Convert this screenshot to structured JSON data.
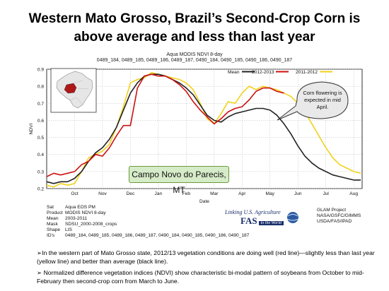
{
  "header": {
    "title_line1": "Western Mato Grosso, Brazil’s Second-Crop Corn is",
    "title_line2": "above average and less than last year"
  },
  "chart_header": {
    "line1": "Aqua MODIS NDVI 8-day",
    "line2": "0489_184, 0489_185, 0489_186, 0489_187, 0490_184, 0490_185, 0490_186, 0490_187"
  },
  "callout": "Campo Novo do Parecis, MT",
  "bubble": "Corn flowering is expected in mid April.",
  "meta": [
    {
      "k": "Sat",
      "v": "Aqua EOS PM"
    },
    {
      "k": "Product",
      "v": "MODIS NDVI 8-day"
    },
    {
      "k": "Mean",
      "v": "2003-2011"
    },
    {
      "k": "Mask",
      "v": "SDSU_2000-2008_crops"
    },
    {
      "k": "Shape",
      "v": "LIS"
    },
    {
      "k": "ID's",
      "v": "0489_184, 0489_185, 0489_186, 0489_187, 0490_184, 0490_185, 0490_186, 0490_187"
    }
  ],
  "logo": {
    "text1": "Linking U.S. Agriculture",
    "text2": "FAS",
    "text3": "to the World"
  },
  "glam": [
    "GLAM Project",
    "NASA/GSFC/GIMMS",
    "USDA/FAS/IPAD"
  ],
  "bullets": [
    "In the western part of Mato Grosso state, 2012/13 vegetation conditions are doing well (red line)—slightly less than last year (yellow line) and better than average (black line).",
    "Normalized difference vegetation indices (NDVI) show characteristic bi-modal pattern of soybeans from October to mid-February then second-crop corn from March to June."
  ],
  "colors": {
    "mean": "#222222",
    "y2012_2013": "#cc1111",
    "y2011_2012": "#f2d21b",
    "callout_fill": "#d6ecc8",
    "callout_border": "#6a9a3a",
    "bubble_fill": "#e9e9e9"
  },
  "chart_data": {
    "type": "line",
    "xlabel": "Date",
    "ylabel": "NDVI",
    "ylim": [
      0.2,
      0.9
    ],
    "yticks": [
      0.2,
      0.3,
      0.4,
      0.5,
      0.6,
      0.7,
      0.8,
      0.9
    ],
    "xlim": [
      0,
      11.3
    ],
    "xticks": [
      {
        "pos": 1,
        "label": "Oct"
      },
      {
        "pos": 2,
        "label": "Nov"
      },
      {
        "pos": 3,
        "label": "Dec"
      },
      {
        "pos": 4,
        "label": "Jan"
      },
      {
        "pos": 5,
        "label": "Feb"
      },
      {
        "pos": 6,
        "label": "Mar"
      },
      {
        "pos": 7,
        "label": "Apr"
      },
      {
        "pos": 8,
        "label": "May"
      },
      {
        "pos": 9,
        "label": "Jun"
      },
      {
        "pos": 10,
        "label": "Jul"
      },
      {
        "pos": 11,
        "label": "Aug"
      }
    ],
    "legend_position": "top-right",
    "series": [
      {
        "name": "Mean",
        "x": [
          0,
          0.25,
          0.5,
          0.75,
          1,
          1.25,
          1.5,
          1.75,
          2,
          2.25,
          2.5,
          2.75,
          3,
          3.25,
          3.5,
          3.75,
          4,
          4.25,
          4.5,
          4.75,
          5,
          5.25,
          5.5,
          5.75,
          6,
          6.25,
          6.5,
          6.75,
          7,
          7.25,
          7.5,
          7.75,
          8,
          8.25,
          8.5,
          8.75,
          9,
          9.25,
          9.5,
          9.75,
          10,
          10.25,
          10.5,
          10.75,
          11,
          11.25
        ],
        "y": [
          0.24,
          0.23,
          0.24,
          0.24,
          0.26,
          0.3,
          0.36,
          0.41,
          0.44,
          0.49,
          0.56,
          0.66,
          0.76,
          0.82,
          0.86,
          0.87,
          0.87,
          0.86,
          0.84,
          0.82,
          0.79,
          0.75,
          0.69,
          0.63,
          0.6,
          0.59,
          0.62,
          0.64,
          0.65,
          0.66,
          0.67,
          0.67,
          0.66,
          0.63,
          0.58,
          0.52,
          0.45,
          0.39,
          0.35,
          0.32,
          0.3,
          0.28,
          0.27,
          0.26,
          0.25,
          0.25
        ]
      },
      {
        "name": "2012-2013",
        "x": [
          0,
          0.25,
          0.5,
          0.75,
          1,
          1.25,
          1.5,
          1.75,
          2,
          2.25,
          2.5,
          2.75,
          3,
          3.25,
          3.5,
          3.75,
          4,
          4.25,
          4.5,
          4.75,
          5,
          5.25,
          5.5,
          5.75,
          6,
          6.25,
          6.5,
          6.75,
          7,
          7.25,
          7.5,
          7.75,
          8,
          8.25,
          8.5
        ],
        "y": [
          0.27,
          0.29,
          0.28,
          0.29,
          0.3,
          0.34,
          0.36,
          0.4,
          0.39,
          0.44,
          0.51,
          0.57,
          0.57,
          0.79,
          0.86,
          0.87,
          0.86,
          0.86,
          0.84,
          0.81,
          0.77,
          0.71,
          0.66,
          0.62,
          0.58,
          0.61,
          0.65,
          0.67,
          0.68,
          0.72,
          0.77,
          0.79,
          0.79,
          0.77,
          0.76
        ]
      },
      {
        "name": "2011-2012",
        "x": [
          0,
          0.25,
          0.5,
          0.75,
          1,
          1.25,
          1.5,
          1.75,
          2,
          2.25,
          2.5,
          2.75,
          3,
          3.25,
          3.5,
          3.75,
          4,
          4.25,
          4.5,
          4.75,
          5,
          5.25,
          5.5,
          5.75,
          6,
          6.25,
          6.5,
          6.75,
          7,
          7.25,
          7.5,
          7.75,
          8,
          8.25,
          8.5,
          8.75,
          9,
          9.25,
          9.5,
          9.75,
          10,
          10.25,
          10.5,
          10.75,
          11,
          11.25
        ],
        "y": [
          0.22,
          0.21,
          0.23,
          0.22,
          0.23,
          0.3,
          0.38,
          0.4,
          0.42,
          0.46,
          0.56,
          0.68,
          0.82,
          0.84,
          0.85,
          0.88,
          0.87,
          0.86,
          0.85,
          0.84,
          0.82,
          0.78,
          0.7,
          0.61,
          0.58,
          0.64,
          0.71,
          0.7,
          0.76,
          0.8,
          0.78,
          0.8,
          0.79,
          0.78,
          0.76,
          0.74,
          0.7,
          0.65,
          0.58,
          0.51,
          0.44,
          0.38,
          0.34,
          0.32,
          0.3,
          0.29
        ]
      }
    ]
  }
}
